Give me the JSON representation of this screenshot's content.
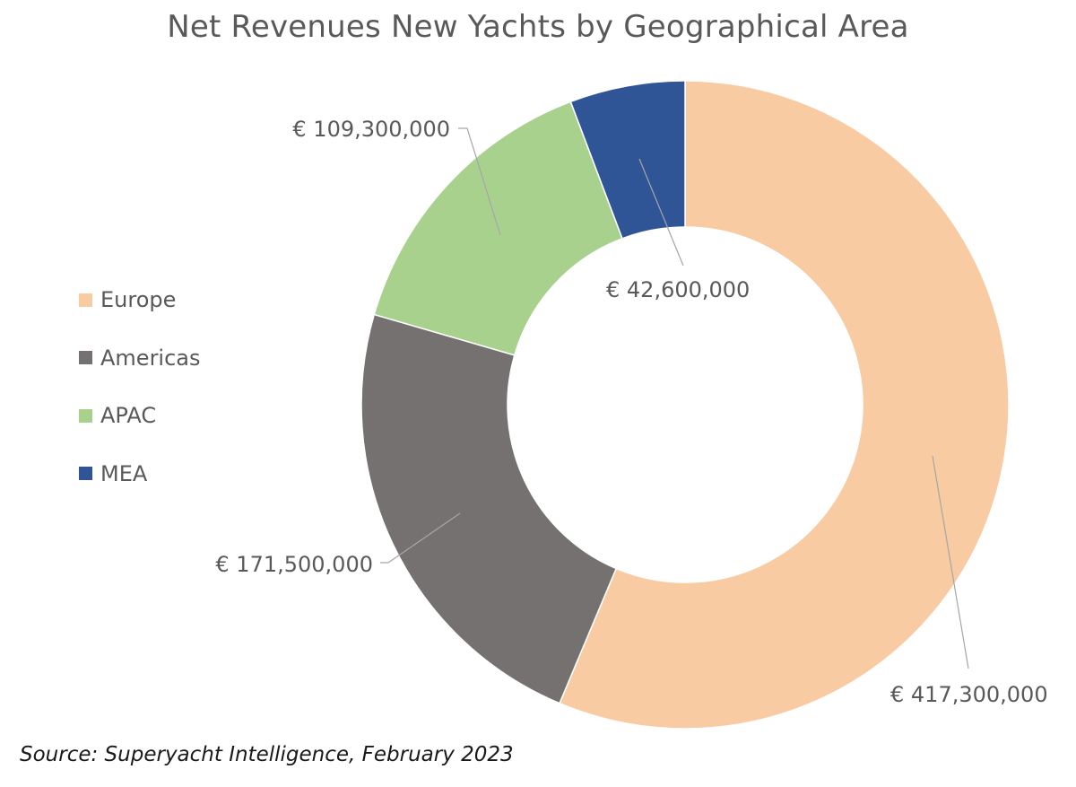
{
  "chart_data": {
    "type": "pie",
    "subtype": "donut",
    "title": "Net Revenues New Yachts by Geographical Area",
    "currency": "€",
    "categories": [
      "Europe",
      "Americas",
      "APAC",
      "MEA"
    ],
    "values": [
      417300000,
      171500000,
      109300000,
      42600000
    ],
    "data_labels": [
      "€ 417,300,000",
      "€ 171,500,000",
      "€ 109,300,000",
      "€ 42,600,000"
    ],
    "colors": [
      "#F8CBA3",
      "#767171",
      "#A9D18E",
      "#2F5597"
    ],
    "legend_position": "left"
  },
  "source": "Source: Superyacht Intelligence, February 2023"
}
